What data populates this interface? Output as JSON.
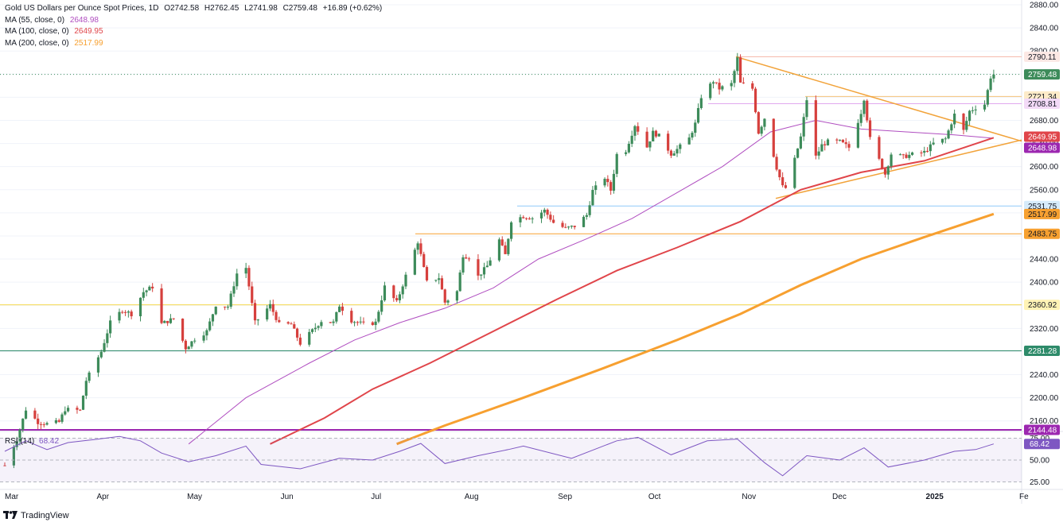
{
  "legend": {
    "symbol": "Gold US Dollars per Ounce Spot Prices, 1D",
    "open": "O2742.58",
    "high": "H2762.45",
    "low": "L2741.98",
    "close": "C2759.48",
    "change": "+16.89 (+0.62%)",
    "ma55_label": "MA (55, close, 0)",
    "ma55_value": "2648.98",
    "ma100_label": "MA (100, close, 0)",
    "ma100_value": "2649.95",
    "ma200_label": "MA (200, close, 0)",
    "ma200_value": "2517.99"
  },
  "rsi": {
    "label": "RSI (14)",
    "value": "68.42"
  },
  "footer": {
    "brand": "TradingView"
  },
  "colors": {
    "up": "#26a69a",
    "up_body": "#3d8b5a",
    "down": "#ef5350",
    "down_body": "#d6403d",
    "ma55": "#b04ec0",
    "ma100": "#e0454a",
    "ma200": "#f7a030",
    "rsi": "#7e57c2",
    "trend": "#f2a33a",
    "level_yellow": "#f5d84d",
    "level_green": "#2e8b6a",
    "level_blue": "#90caf9",
    "level_purple": "#9c27b0",
    "level_pink": "#e1a9ee"
  },
  "chart_data": {
    "type": "candlestick",
    "title": "Gold US Dollars per Ounce Spot Prices, 1D",
    "ylim": [
      2120,
      2890
    ],
    "y_ticks": [
      2880,
      2840,
      2800,
      2760,
      2720,
      2680,
      2640,
      2600,
      2560,
      2520,
      2480,
      2440,
      2400,
      2360,
      2320,
      2280,
      2240,
      2200,
      2160
    ],
    "x_ticks": [
      "Mar",
      "Apr",
      "May",
      "Jun",
      "Jul",
      "Aug",
      "Sep",
      "Oct",
      "Nov",
      "Dec",
      "2025",
      "Fe"
    ],
    "price_anchors": [
      [
        "2024-03-01",
        2083
      ],
      [
        "2024-03-05",
        2128
      ],
      [
        "2024-03-08",
        2180
      ],
      [
        "2024-03-12",
        2158
      ],
      [
        "2024-03-15",
        2155
      ],
      [
        "2024-03-19",
        2158
      ],
      [
        "2024-03-21",
        2180
      ],
      [
        "2024-03-26",
        2178
      ],
      [
        "2024-03-28",
        2230
      ],
      [
        "2024-04-02",
        2280
      ],
      [
        "2024-04-05",
        2330
      ],
      [
        "2024-04-09",
        2352
      ],
      [
        "2024-04-12",
        2345
      ],
      [
        "2024-04-16",
        2383
      ],
      [
        "2024-04-19",
        2392
      ],
      [
        "2024-04-22",
        2328
      ],
      [
        "2024-04-26",
        2337
      ],
      [
        "2024-04-30",
        2286
      ],
      [
        "2024-05-03",
        2302
      ],
      [
        "2024-05-07",
        2315
      ],
      [
        "2024-05-10",
        2361
      ],
      [
        "2024-05-14",
        2358
      ],
      [
        "2024-05-17",
        2415
      ],
      [
        "2024-05-20",
        2425
      ],
      [
        "2024-05-23",
        2330
      ],
      [
        "2024-05-28",
        2360
      ],
      [
        "2024-05-31",
        2327
      ],
      [
        "2024-06-04",
        2327
      ],
      [
        "2024-06-07",
        2294
      ],
      [
        "2024-06-11",
        2316
      ],
      [
        "2024-06-14",
        2333
      ],
      [
        "2024-06-18",
        2330
      ],
      [
        "2024-06-20",
        2360
      ],
      [
        "2024-06-24",
        2334
      ],
      [
        "2024-06-28",
        2327
      ],
      [
        "2024-07-02",
        2330
      ],
      [
        "2024-07-05",
        2392
      ],
      [
        "2024-07-09",
        2365
      ],
      [
        "2024-07-12",
        2411
      ],
      [
        "2024-07-16",
        2470
      ],
      [
        "2024-07-19",
        2400
      ],
      [
        "2024-07-23",
        2408
      ],
      [
        "2024-07-25",
        2365
      ],
      [
        "2024-07-29",
        2384
      ],
      [
        "2024-07-31",
        2447
      ],
      [
        "2024-08-02",
        2443
      ],
      [
        "2024-08-05",
        2410
      ],
      [
        "2024-08-08",
        2428
      ],
      [
        "2024-08-12",
        2473
      ],
      [
        "2024-08-14",
        2447
      ],
      [
        "2024-08-16",
        2507
      ],
      [
        "2024-08-20",
        2514
      ],
      [
        "2024-08-23",
        2511
      ],
      [
        "2024-08-27",
        2524
      ],
      [
        "2024-08-30",
        2503
      ],
      [
        "2024-09-03",
        2493
      ],
      [
        "2024-09-06",
        2497
      ],
      [
        "2024-09-10",
        2516
      ],
      [
        "2024-09-12",
        2558
      ],
      [
        "2024-09-16",
        2581
      ],
      [
        "2024-09-18",
        2559
      ],
      [
        "2024-09-20",
        2621
      ],
      [
        "2024-09-23",
        2628
      ],
      [
        "2024-09-26",
        2672
      ],
      [
        "2024-09-30",
        2634
      ],
      [
        "2024-10-02",
        2659
      ],
      [
        "2024-10-04",
        2653
      ],
      [
        "2024-10-08",
        2622
      ],
      [
        "2024-10-10",
        2630
      ],
      [
        "2024-10-14",
        2649
      ],
      [
        "2024-10-16",
        2674
      ],
      [
        "2024-10-18",
        2721
      ],
      [
        "2024-10-22",
        2748
      ],
      [
        "2024-10-24",
        2735
      ],
      [
        "2024-10-28",
        2743
      ],
      [
        "2024-10-30",
        2787
      ],
      [
        "2024-10-31",
        2744
      ],
      [
        "2024-11-04",
        2735
      ],
      [
        "2024-11-06",
        2659
      ],
      [
        "2024-11-08",
        2684
      ],
      [
        "2024-11-12",
        2598
      ],
      [
        "2024-11-14",
        2565
      ],
      [
        "2024-11-15",
        2563
      ],
      [
        "2024-11-18",
        2612
      ],
      [
        "2024-11-20",
        2651
      ],
      [
        "2024-11-22",
        2716
      ],
      [
        "2024-11-25",
        2617
      ],
      [
        "2024-11-27",
        2637
      ],
      [
        "2024-11-29",
        2643
      ],
      [
        "2024-12-03",
        2643
      ],
      [
        "2024-12-06",
        2633
      ],
      [
        "2024-12-10",
        2694
      ],
      [
        "2024-12-11",
        2718
      ],
      [
        "2024-12-13",
        2648
      ],
      [
        "2024-12-18",
        2587
      ],
      [
        "2024-12-20",
        2622
      ],
      [
        "2024-12-24",
        2617
      ],
      [
        "2024-12-27",
        2621
      ],
      [
        "2024-12-31",
        2625
      ],
      [
        "2025-01-03",
        2640
      ],
      [
        "2025-01-07",
        2648
      ],
      [
        "2025-01-10",
        2690
      ],
      [
        "2025-01-13",
        2662
      ],
      [
        "2025-01-15",
        2696
      ],
      [
        "2025-01-17",
        2702
      ],
      [
        "2025-01-20",
        2708
      ],
      [
        "2025-01-22",
        2755
      ],
      [
        "2025-01-23",
        2759.48
      ]
    ],
    "moving_averages": [
      {
        "name": "MA (55, close, 0)",
        "last": 2648.98,
        "points": [
          [
            "2024-05-01",
            2120
          ],
          [
            "2024-05-20",
            2200
          ],
          [
            "2024-06-10",
            2260
          ],
          [
            "2024-06-25",
            2300
          ],
          [
            "2024-07-10",
            2330
          ],
          [
            "2024-07-25",
            2355
          ],
          [
            "2024-08-10",
            2390
          ],
          [
            "2024-08-25",
            2440
          ],
          [
            "2024-09-10",
            2475
          ],
          [
            "2024-09-25",
            2510
          ],
          [
            "2024-10-10",
            2555
          ],
          [
            "2024-10-25",
            2600
          ],
          [
            "2024-11-10",
            2660
          ],
          [
            "2024-11-25",
            2680
          ],
          [
            "2024-12-10",
            2665
          ],
          [
            "2024-12-25",
            2660
          ],
          [
            "2025-01-10",
            2655
          ],
          [
            "2025-01-23",
            2648.98
          ]
        ]
      },
      {
        "name": "MA (100, close, 0)",
        "last": 2649.95,
        "points": [
          [
            "2024-05-28",
            2120
          ],
          [
            "2024-06-15",
            2165
          ],
          [
            "2024-07-01",
            2215
          ],
          [
            "2024-07-20",
            2260
          ],
          [
            "2024-08-10",
            2315
          ],
          [
            "2024-08-31",
            2370
          ],
          [
            "2024-09-20",
            2420
          ],
          [
            "2024-10-10",
            2460
          ],
          [
            "2024-10-31",
            2505
          ],
          [
            "2024-11-20",
            2560
          ],
          [
            "2024-12-10",
            2590
          ],
          [
            "2024-12-31",
            2610
          ],
          [
            "2025-01-23",
            2649.95
          ]
        ]
      },
      {
        "name": "MA (200, close, 0)",
        "last": 2517.99,
        "points": [
          [
            "2024-07-09",
            2120
          ],
          [
            "2024-07-25",
            2152
          ],
          [
            "2024-08-20",
            2200
          ],
          [
            "2024-09-15",
            2250
          ],
          [
            "2024-10-10",
            2300
          ],
          [
            "2024-10-31",
            2345
          ],
          [
            "2024-11-20",
            2395
          ],
          [
            "2024-12-10",
            2440
          ],
          [
            "2024-12-31",
            2478
          ],
          [
            "2025-01-23",
            2517.99
          ]
        ]
      }
    ],
    "levels": [
      2790.11,
      2721.34,
      2708.81,
      2531.75,
      2483.75,
      2360.92,
      2281.28,
      2144.48
    ],
    "last_price": 2759.48,
    "rsi": {
      "label": "RSI (14)",
      "last": 68.42,
      "y_ticks": [
        75,
        50,
        25
      ],
      "ylim": [
        20,
        80
      ],
      "points": [
        [
          "2024-03-01",
          60
        ],
        [
          "2024-03-08",
          72
        ],
        [
          "2024-03-15",
          62
        ],
        [
          "2024-03-22",
          70
        ],
        [
          "2024-04-01",
          74
        ],
        [
          "2024-04-08",
          77
        ],
        [
          "2024-04-15",
          72
        ],
        [
          "2024-04-22",
          58
        ],
        [
          "2024-05-01",
          48
        ],
        [
          "2024-05-10",
          55
        ],
        [
          "2024-05-20",
          66
        ],
        [
          "2024-05-25",
          45
        ],
        [
          "2024-06-07",
          40
        ],
        [
          "2024-06-20",
          52
        ],
        [
          "2024-07-01",
          50
        ],
        [
          "2024-07-10",
          60
        ],
        [
          "2024-07-17",
          69
        ],
        [
          "2024-07-25",
          46
        ],
        [
          "2024-08-05",
          55
        ],
        [
          "2024-08-15",
          62
        ],
        [
          "2024-08-20",
          66
        ],
        [
          "2024-09-05",
          52
        ],
        [
          "2024-09-20",
          72
        ],
        [
          "2024-09-27",
          76
        ],
        [
          "2024-10-08",
          56
        ],
        [
          "2024-10-20",
          72
        ],
        [
          "2024-10-30",
          74
        ],
        [
          "2024-11-08",
          47
        ],
        [
          "2024-11-14",
          32
        ],
        [
          "2024-11-22",
          55
        ],
        [
          "2024-12-03",
          50
        ],
        [
          "2024-12-11",
          64
        ],
        [
          "2024-12-19",
          42
        ],
        [
          "2024-12-31",
          50
        ],
        [
          "2025-01-10",
          60
        ],
        [
          "2025-01-17",
          62
        ],
        [
          "2025-01-23",
          68.42
        ]
      ]
    }
  }
}
